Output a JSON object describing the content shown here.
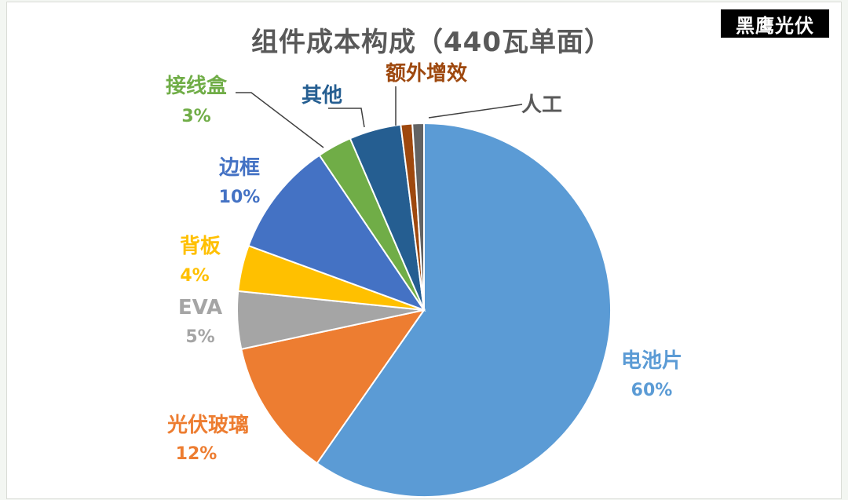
{
  "chart_data": {
    "type": "pie",
    "title": "组件成本构成（440瓦单面）",
    "watermark": "黑鹰光伏",
    "slices": [
      {
        "name": "电池片",
        "value": 60,
        "label": "60%",
        "color": "#5b9bd5"
      },
      {
        "name": "光伏玻璃",
        "value": 12,
        "label": "12%",
        "color": "#ed7d31"
      },
      {
        "name": "EVA",
        "value": 5,
        "label": "5%",
        "color": "#a5a5a5"
      },
      {
        "name": "背板",
        "value": 4,
        "label": "4%",
        "color": "#ffc000"
      },
      {
        "name": "边框",
        "value": 10,
        "label": "10%",
        "color": "#4472c4"
      },
      {
        "name": "接线盒",
        "value": 3,
        "label": "3%",
        "color": "#70ad47"
      },
      {
        "name": "其他",
        "value": 4.5,
        "label": "",
        "color": "#255e91"
      },
      {
        "name": "额外增效",
        "value": 1,
        "label": "",
        "color": "#9e480e"
      },
      {
        "name": "人工",
        "value": 1,
        "label": "",
        "color": "#636363"
      }
    ]
  }
}
